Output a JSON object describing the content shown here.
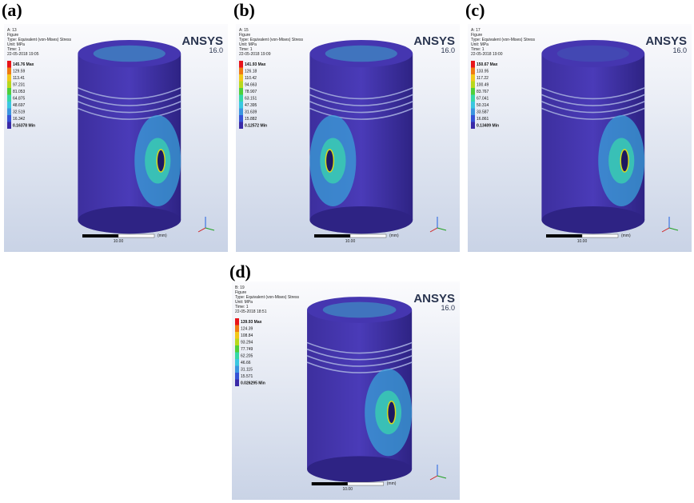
{
  "panels": [
    {
      "label": "(a)",
      "header": [
        "A: 13",
        "Figure",
        "Type: Equivalent (von-Mises) Stress",
        "Unit: MPa",
        "Time: 1",
        "22-05-2018 19:05"
      ],
      "legend": [
        "145.76 Max",
        "129.59",
        "113.41",
        "97.231",
        "81.053",
        "64.875",
        "48.697",
        "32.519",
        "16.342",
        "0.16378 Min"
      ],
      "brand": "ANSYS",
      "version": "16.0",
      "scale": "10.00",
      "unit": "(mm)"
    },
    {
      "label": "(b)",
      "header": [
        "A: 15",
        "Figure",
        "Type: Equivalent (von-Mises) Stress",
        "Unit: MPa",
        "Time: 1",
        "22-05-2018 19:09"
      ],
      "legend": [
        "141.93 Max",
        "126.18",
        "110.42",
        "94.663",
        "78.907",
        "63.151",
        "47.395",
        "31.639",
        "15.882",
        "0.12572 Min"
      ],
      "brand": "ANSYS",
      "version": "16.0",
      "scale": "10.00",
      "unit": "(mm)"
    },
    {
      "label": "(c)",
      "header": [
        "A: 17",
        "Figure",
        "Type: Equivalent (von-Mises) Stress",
        "Unit: MPa",
        "Time: 1",
        "22-05-2018 19:00"
      ],
      "legend": [
        "150.67 Max",
        "133.95",
        "117.22",
        "100.49",
        "83.767",
        "67.041",
        "50.314",
        "33.587",
        "16.861",
        "0.13409 Min"
      ],
      "brand": "ANSYS",
      "version": "16.0",
      "scale": "10.00",
      "unit": "(mm)"
    },
    {
      "label": "(d)",
      "header": [
        "B: 19",
        "Figure",
        "Type: Equivalent (von-Mises) Stress",
        "Unit: MPa",
        "Time: 1",
        "22-05-2018 18:51"
      ],
      "legend": [
        "139.93 Max",
        "124.39",
        "108.84",
        "93.294",
        "77.749",
        "62.205",
        "46.66",
        "31.115",
        "15.571",
        "0.026295 Min"
      ],
      "brand": "ANSYS",
      "version": "16.0",
      "scale": "10.00",
      "unit": "(mm)"
    }
  ]
}
